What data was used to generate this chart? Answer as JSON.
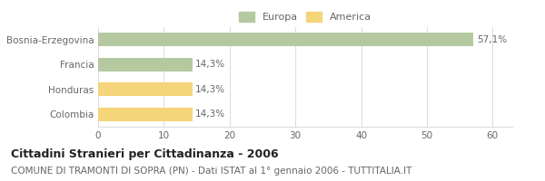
{
  "categories": [
    "Bosnia-Erzegovina",
    "Francia",
    "Honduras",
    "Colombia"
  ],
  "values": [
    57.1,
    14.3,
    14.3,
    14.3
  ],
  "labels": [
    "57,1%",
    "14,3%",
    "14,3%",
    "14,3%"
  ],
  "colors": [
    "#b5c9a0",
    "#b5c9a0",
    "#f5d57a",
    "#f5d57a"
  ],
  "legend": [
    {
      "label": "Europa",
      "color": "#b5c9a0"
    },
    {
      "label": "America",
      "color": "#f5d57a"
    }
  ],
  "xlim": [
    0,
    63
  ],
  "xticks": [
    0,
    10,
    20,
    30,
    40,
    50,
    60
  ],
  "title": "Cittadini Stranieri per Cittadinanza - 2006",
  "subtitle": "COMUNE DI TRAMONTI DI SOPRA (PN) - Dati ISTAT al 1° gennaio 2006 - TUTTITALIA.IT",
  "bg_color": "#ffffff",
  "grid_color": "#dddddd",
  "bar_height": 0.55,
  "title_fontsize": 9,
  "subtitle_fontsize": 7.5,
  "label_fontsize": 7.5,
  "tick_fontsize": 7.5,
  "legend_fontsize": 8
}
